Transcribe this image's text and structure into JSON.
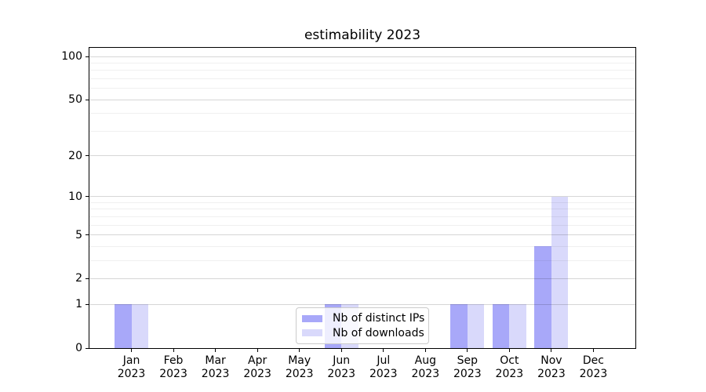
{
  "chart_data": {
    "type": "bar",
    "title": "estimability 2023",
    "categories": [
      "Jan",
      "Feb",
      "Mar",
      "Apr",
      "May",
      "Jun",
      "Jul",
      "Aug",
      "Sep",
      "Oct",
      "Nov",
      "Dec"
    ],
    "category_year": "2023",
    "series": [
      {
        "name": "Nb of distinct IPs",
        "color": "#a8a8f9",
        "values": [
          1,
          0,
          0,
          0,
          0,
          1,
          0,
          0,
          1,
          1,
          4,
          0
        ]
      },
      {
        "name": "Nb of downloads",
        "color": "#d9d9fb",
        "values": [
          1,
          0,
          0,
          0,
          0,
          1,
          0,
          0,
          1,
          1,
          10,
          0
        ]
      }
    ],
    "yscale": "log1p",
    "ylim": [
      0,
      115
    ],
    "yticks": [
      0,
      1,
      2,
      5,
      10,
      20,
      50,
      100
    ],
    "yticks_minor": [
      3,
      4,
      6,
      7,
      8,
      9,
      30,
      40,
      60,
      70,
      80,
      90
    ],
    "grid": true,
    "legend_position": "lower center",
    "colors": {
      "axis": "#000000",
      "grid_major": "#d8d8d8",
      "grid_minor": "#efefef"
    }
  }
}
